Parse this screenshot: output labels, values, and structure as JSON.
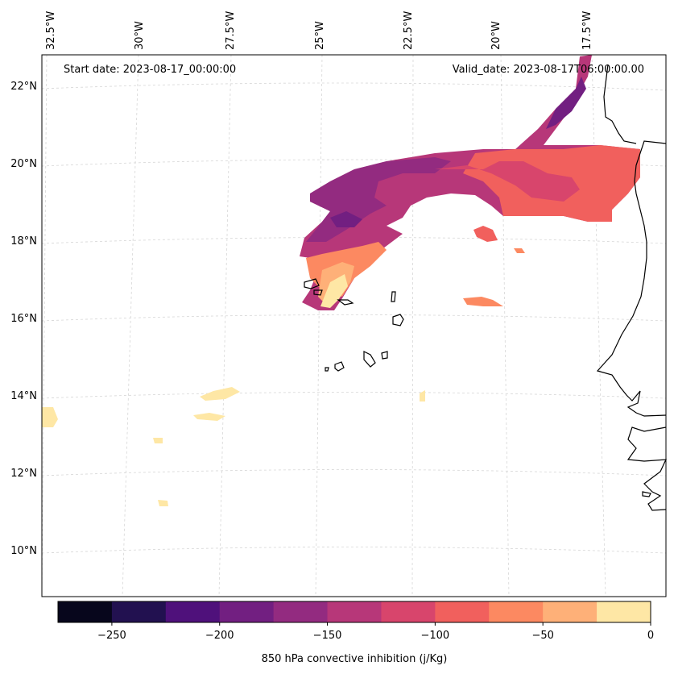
{
  "header": {
    "start_date": "Start date: 2023-08-17_00:00:00",
    "valid_date": "Valid_date: 2023-08-17T06:00:00.00"
  },
  "axes": {
    "lon_labels": [
      "32.5°W",
      "30°W",
      "27.5°W",
      "25°W",
      "22.5°W",
      "20°W",
      "17.5°W"
    ],
    "lat_labels": [
      "22°N",
      "20°N",
      "18°N",
      "16°N",
      "14°N",
      "12°N",
      "10°N"
    ]
  },
  "colorbar": {
    "label": "850 hPa convective inhibition (j/Kg)",
    "ticks": [
      "−250",
      "−200",
      "−150",
      "−100",
      "−50",
      "0"
    ],
    "range": [
      -275,
      0
    ],
    "colors": [
      "#07061c",
      "#221150",
      "#4f117b",
      "#721f81",
      "#932b80",
      "#b73779",
      "#d8456c",
      "#f1605d",
      "#fc8961",
      "#feb078",
      "#fee7a5"
    ]
  },
  "colors": {
    "land_outline": "#000000",
    "grid": "#cccccc"
  }
}
